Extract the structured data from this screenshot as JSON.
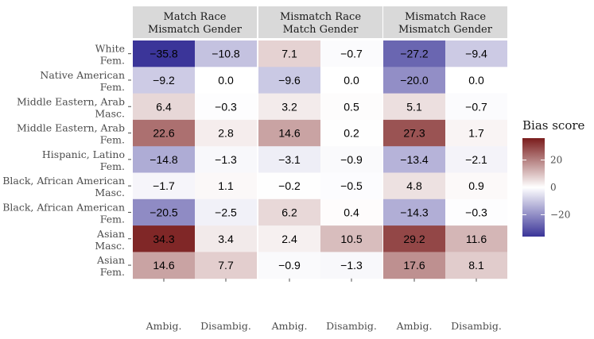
{
  "chart_data": {
    "type": "heatmap",
    "panels": [
      {
        "title_line1": "Match Race",
        "title_line2": "Mismatch Gender",
        "values": [
          [
            -35.8,
            -10.8
          ],
          [
            -9.2,
            0.0
          ],
          [
            6.4,
            -0.3
          ],
          [
            22.6,
            2.8
          ],
          [
            -14.8,
            -1.3
          ],
          [
            -1.7,
            1.1
          ],
          [
            -20.5,
            -2.5
          ],
          [
            34.3,
            3.4
          ],
          [
            14.6,
            7.7
          ]
        ]
      },
      {
        "title_line1": "Mismatch Race",
        "title_line2": "Match Gender",
        "values": [
          [
            7.1,
            -0.7
          ],
          [
            -9.6,
            0.0
          ],
          [
            3.2,
            0.5
          ],
          [
            14.6,
            0.2
          ],
          [
            -3.1,
            -0.9
          ],
          [
            -0.2,
            -0.5
          ],
          [
            6.2,
            0.4
          ],
          [
            2.4,
            10.5
          ],
          [
            -0.9,
            -1.3
          ]
        ]
      },
      {
        "title_line1": "Mismatch Race",
        "title_line2": "Mismatch Gender",
        "values": [
          [
            -27.2,
            -9.4
          ],
          [
            -20.0,
            0.0
          ],
          [
            5.1,
            -0.7
          ],
          [
            27.3,
            1.7
          ],
          [
            -13.4,
            -2.1
          ],
          [
            4.8,
            0.9
          ],
          [
            -14.3,
            -0.3
          ],
          [
            29.2,
            11.6
          ],
          [
            17.6,
            8.1
          ]
        ]
      }
    ],
    "rows": [
      {
        "line1": "White",
        "line2": "Fem."
      },
      {
        "line1": "Native American",
        "line2": "Fem."
      },
      {
        "line1": "Middle Eastern, Arab",
        "line2": "Masc."
      },
      {
        "line1": "Middle Eastern, Arab",
        "line2": "Fem."
      },
      {
        "line1": "Hispanic, Latino",
        "line2": "Fem."
      },
      {
        "line1": "Black, African American",
        "line2": "Masc."
      },
      {
        "line1": "Black, African American",
        "line2": "Fem."
      },
      {
        "line1": "Asian",
        "line2": "Masc."
      },
      {
        "line1": "Asian",
        "line2": "Fem."
      }
    ],
    "columns": [
      "Ambig.",
      "Disambig."
    ],
    "legend": {
      "title": "Bias score",
      "ticks": [
        20,
        0,
        -20
      ],
      "range": [
        -36,
        36
      ],
      "colors": {
        "low": "#3a3498",
        "mid": "#ffffff",
        "high": "#7a1c1c"
      }
    },
    "colors": {
      "strip_background": "#d9d9d9",
      "text_dark": "#000000",
      "text_light": "#ffffff"
    }
  }
}
